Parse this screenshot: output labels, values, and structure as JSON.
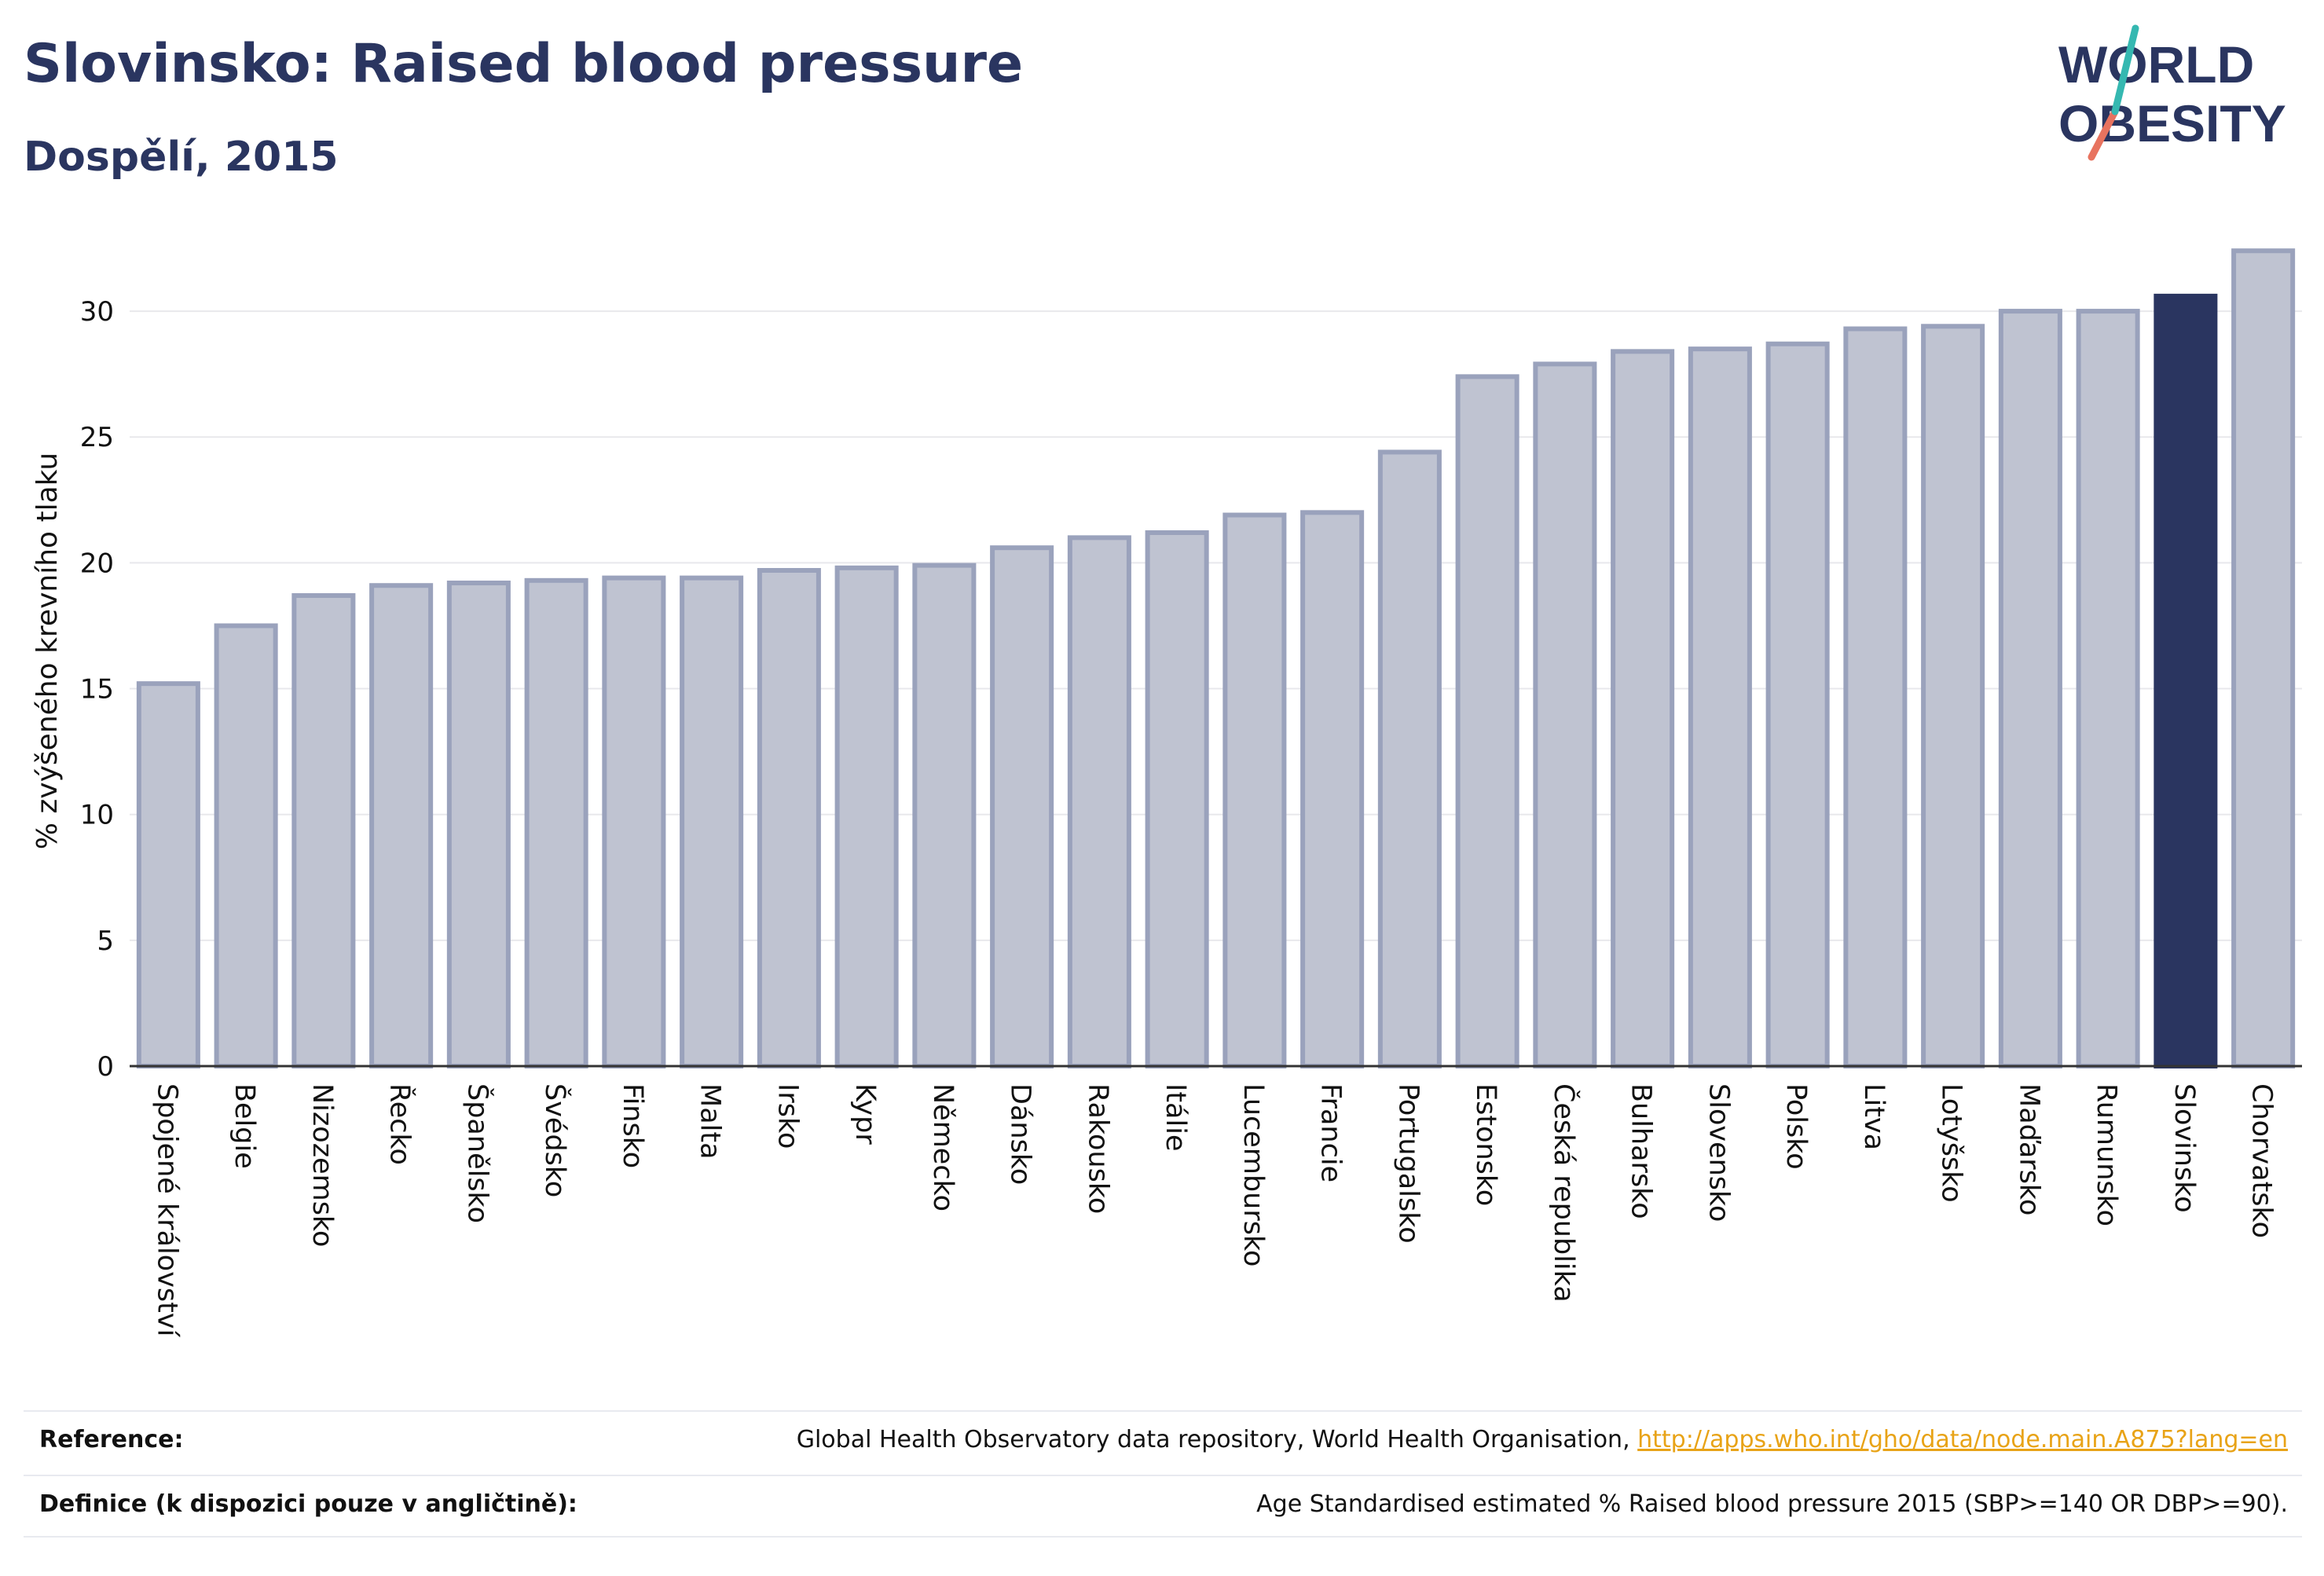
{
  "header": {
    "title": "Slovinsko: Raised blood pressure",
    "subtitle": "Dospělí, 2015"
  },
  "logo": {
    "line1": "WORLD",
    "line2": "OBESITY",
    "name": "world-obesity-logo"
  },
  "colors": {
    "bar": "#bfc3d1",
    "bar_stroke": "#9aa2bc",
    "highlight": "#2a3560",
    "grid": "#e8e8ec",
    "axis": "#333333",
    "text": "#111111",
    "link": "#e8a317"
  },
  "chart_data": {
    "type": "bar",
    "ylabel": "% zvýšeného krevního tlaku",
    "xlabel": "",
    "ylim": [
      0,
      33
    ],
    "yticks": [
      0,
      5,
      10,
      15,
      20,
      25,
      30
    ],
    "grid": true,
    "highlight": "Slovinsko",
    "categories": [
      "Spojené království",
      "Belgie",
      "Nizozemsko",
      "Řecko",
      "Španělsko",
      "Švédsko",
      "Finsko",
      "Malta",
      "Irsko",
      "Kypr",
      "Německo",
      "Dánsko",
      "Rakousko",
      "Itálie",
      "Lucembursko",
      "Francie",
      "Portugalsko",
      "Estonsko",
      "Česká republika",
      "Bulharsko",
      "Slovensko",
      "Polsko",
      "Litva",
      "Lotyšsko",
      "Maďarsko",
      "Rumunsko",
      "Slovinsko",
      "Chorvatsko"
    ],
    "values": [
      15.2,
      17.5,
      18.7,
      19.1,
      19.2,
      19.3,
      19.4,
      19.4,
      19.7,
      19.8,
      19.9,
      20.6,
      21.0,
      21.2,
      21.9,
      22.0,
      24.4,
      27.4,
      27.9,
      28.4,
      28.5,
      28.7,
      29.3,
      29.4,
      30.0,
      30.0,
      30.6,
      32.4
    ]
  },
  "footer": {
    "reference_label": "Reference:",
    "reference_text": "Global Health Observatory data repository, World Health Organisation, ",
    "reference_link": "http://apps.who.int/gho/data/node.main.A875?lang=en",
    "definition_label": "Definice (k dispozici pouze v angličtině):",
    "definition_text": "Age Standardised estimated % Raised blood pressure 2015 (SBP>=140 OR DBP>=90)."
  }
}
